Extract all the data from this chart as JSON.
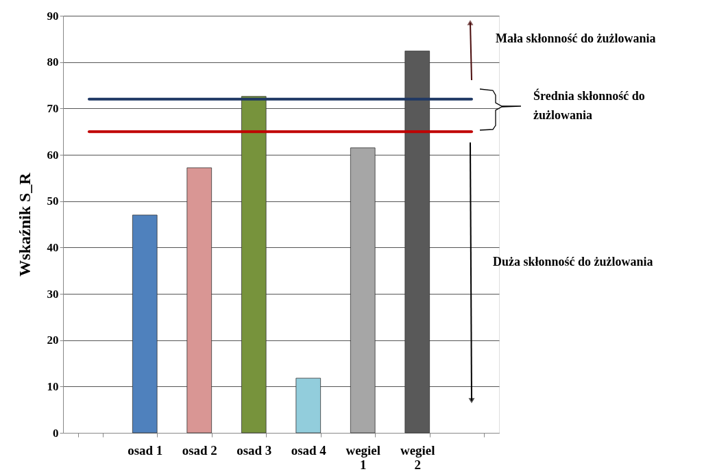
{
  "chart_data": {
    "type": "bar",
    "ylabel": "Wskaźnik S_R",
    "categories": [
      null,
      "osad 1",
      "osad 2",
      "osad 3",
      "osad 4",
      "wegiel 1",
      "wegiel 2",
      null
    ],
    "values": [
      null,
      47,
      57.2,
      72.6,
      11.8,
      61.5,
      82.4,
      null
    ],
    "colors": [
      "#ffffff",
      "#4f81bd",
      "#d99694",
      "#77933c",
      "#92cddc",
      "#a6a6a6",
      "#595959",
      "#ffffff"
    ],
    "ylim": [
      0,
      90
    ],
    "yticks": [
      0,
      10,
      20,
      30,
      40,
      50,
      60,
      70,
      80,
      90
    ],
    "grid": "y",
    "ref_lines": [
      {
        "axis": "y",
        "value": 72,
        "label": null,
        "color": "#1f3864"
      },
      {
        "axis": "y",
        "value": 65,
        "label": null,
        "color": "#c00000"
      }
    ],
    "annotations": [
      "Mała skłonność do żużlowania",
      "Średnia skłonność do żużlowania",
      "Duża skłonność do żużlowania"
    ]
  }
}
